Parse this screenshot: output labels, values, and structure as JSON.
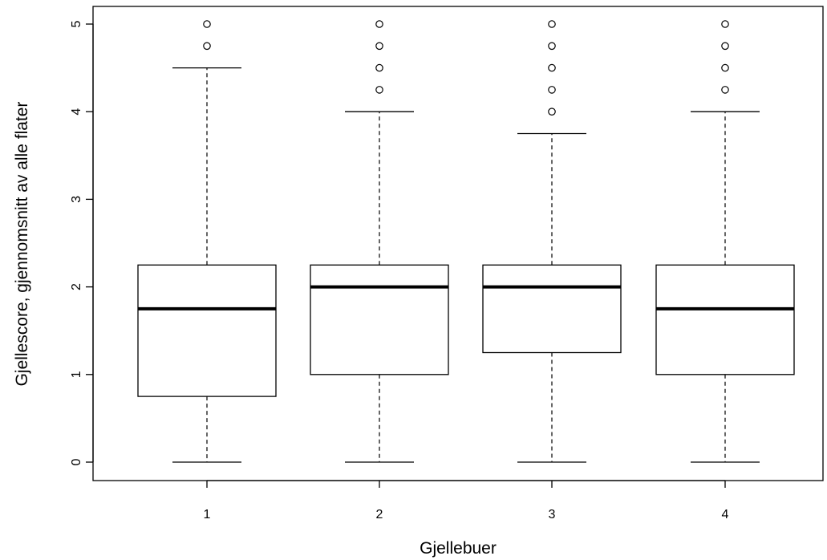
{
  "chart_data": {
    "type": "boxplot",
    "xlabel": "Gjellebuer",
    "ylabel": "Gjellescore, gjennomsnitt av alle flater",
    "ylim": [
      -0.2,
      5.2
    ],
    "yticks": [
      0,
      1,
      2,
      3,
      4,
      5
    ],
    "categories": [
      "1",
      "2",
      "3",
      "4"
    ],
    "boxes": [
      {
        "category": "1",
        "whisker_low": 0,
        "q1": 0.75,
        "median": 1.75,
        "q3": 2.25,
        "whisker_high": 4.5,
        "outliers": [
          4.75,
          5
        ]
      },
      {
        "category": "2",
        "whisker_low": 0,
        "q1": 1.0,
        "median": 2.0,
        "q3": 2.25,
        "whisker_high": 4.0,
        "outliers": [
          4.25,
          4.5,
          4.75,
          5
        ]
      },
      {
        "category": "3",
        "whisker_low": 0,
        "q1": 1.25,
        "median": 2.0,
        "q3": 2.25,
        "whisker_high": 3.75,
        "outliers": [
          4.0,
          4.25,
          4.5,
          4.75,
          5
        ]
      },
      {
        "category": "4",
        "whisker_low": 0,
        "q1": 1.0,
        "median": 1.75,
        "q3": 2.25,
        "whisker_high": 4.0,
        "outliers": [
          4.25,
          4.5,
          4.75,
          5
        ]
      }
    ],
    "grid": false,
    "legend": "none"
  }
}
